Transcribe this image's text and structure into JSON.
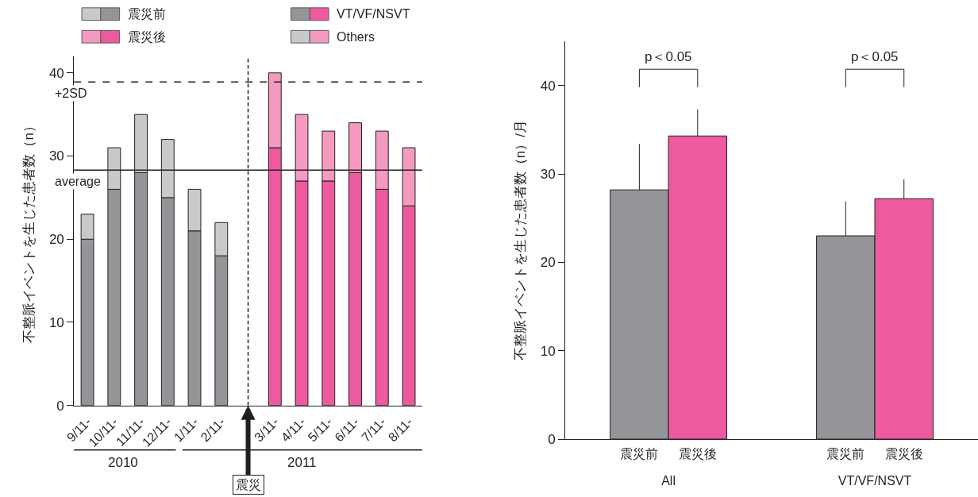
{
  "chart_data": [
    {
      "type": "bar",
      "stacked": true,
      "ylabel": "不整脈イベントを生じた患者数（n）",
      "categories": [
        "9/11-",
        "10/11-",
        "11/11-",
        "12/11-",
        "1/11-",
        "2/11-",
        null,
        "3/11-",
        "4/11-",
        "5/11-",
        "6/11-",
        "7/11-",
        "8/11-"
      ],
      "series": [
        {
          "name": "VT/VF/NSVT",
          "colors": [
            "#939598",
            "#939598",
            "#939598",
            "#939598",
            "#939598",
            "#939598",
            "#939598",
            "#ee5a9e",
            "#ee5a9e",
            "#ee5a9e",
            "#ee5a9e",
            "#ee5a9e",
            "#ee5a9e"
          ],
          "values": [
            20,
            26,
            28,
            25,
            21,
            18,
            null,
            31,
            27,
            27,
            28,
            26,
            24
          ]
        },
        {
          "name": "Others",
          "colors": [
            "#c8c9cb",
            "#c8c9cb",
            "#c8c9cb",
            "#c8c9cb",
            "#c8c9cb",
            "#c8c9cb",
            "#c8c9cb",
            "#f49ac1",
            "#f49ac1",
            "#f49ac1",
            "#f49ac1",
            "#f49ac1",
            "#f49ac1"
          ],
          "values": [
            3,
            5,
            7,
            7,
            5,
            4,
            null,
            9,
            8,
            6,
            6,
            7,
            7
          ]
        }
      ],
      "ylim": [
        0,
        42
      ],
      "yticks": [
        0,
        10,
        20,
        30,
        40
      ],
      "grid": false,
      "legend": "top",
      "ref_lines": [
        {
          "axis": "y",
          "value": 38.9,
          "label": "+2SD",
          "line_style": "dashed"
        },
        {
          "axis": "y",
          "value": 28.3,
          "label": "average",
          "line_style": "solid"
        }
      ],
      "annotations": [
        "2010",
        "2011",
        "震災前",
        "震災後",
        "震災"
      ]
    },
    {
      "type": "bar",
      "ylabel": "不整脈イベントを生じた患者数（n）/月",
      "categories": [
        "All",
        "VT/VF/NSVT"
      ],
      "series": [
        {
          "name": "震災前",
          "color": "#939598",
          "values": [
            28.2,
            23.0
          ],
          "errors": [
            [
              28.2,
              33.4
            ],
            [
              23.0,
              26.9
            ]
          ]
        },
        {
          "name": "震災後",
          "color": "#ee5a9e",
          "values": [
            34.3,
            27.2
          ],
          "errors": [
            [
              34.3,
              37.3
            ],
            [
              27.2,
              29.4
            ]
          ]
        }
      ],
      "ylim": [
        0,
        45
      ],
      "yticks": [
        0,
        10,
        20,
        30,
        40
      ],
      "grid": false,
      "legend": false,
      "annotations": [
        "p＜0.05",
        "p＜0.05"
      ]
    }
  ]
}
